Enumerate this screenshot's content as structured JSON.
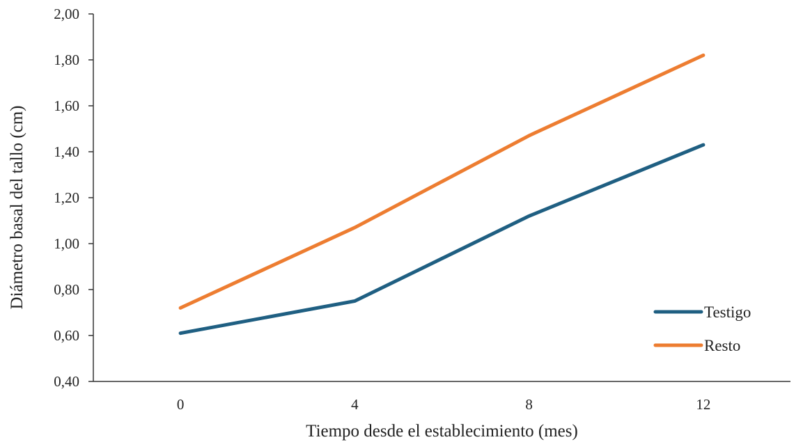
{
  "chart_data": {
    "type": "line",
    "title": "",
    "xlabel": "Tiempo desde el establecimiento (mes)",
    "ylabel": "Diámetro basal del tallo (cm)",
    "x": [
      0,
      4,
      8,
      12
    ],
    "x_tick_labels": [
      "0",
      "4",
      "8",
      "12"
    ],
    "xlim": [
      -2,
      14
    ],
    "ylim": [
      0.4,
      2.0
    ],
    "y_tick_labels": [
      "0,40",
      "0,60",
      "0,80",
      "1,00",
      "1,20",
      "1,40",
      "1,60",
      "1,80",
      "2,00"
    ],
    "grid": false,
    "legend_position": "bottom-right",
    "series": [
      {
        "name": "Testigo",
        "values": [
          0.61,
          0.75,
          1.12,
          1.43
        ],
        "color": "#1f5f82"
      },
      {
        "name": "Resto",
        "values": [
          0.72,
          1.07,
          1.47,
          1.82
        ],
        "color": "#ed7d31"
      }
    ]
  }
}
